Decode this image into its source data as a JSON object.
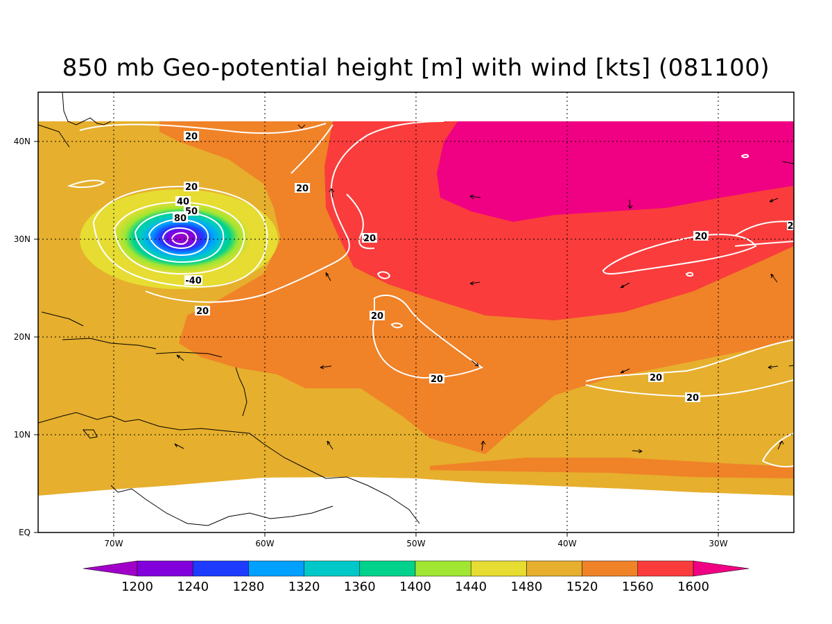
{
  "title": "850 mb Geo-potential height [m] with wind [kts] (081100)",
  "map": {
    "lon_range": [
      -75,
      -25
    ],
    "lat_range": [
      0,
      45
    ],
    "data_lat_range": [
      5,
      42
    ],
    "x_ticks": [
      "70W",
      "60W",
      "50W",
      "40W",
      "30W"
    ],
    "y_ticks": [
      "EQ",
      "10N",
      "20N",
      "30N",
      "40N"
    ],
    "grid": "dotted"
  },
  "colorbar": {
    "levels": [
      "1200",
      "1240",
      "1280",
      "1320",
      "1360",
      "1400",
      "1440",
      "1480",
      "1520",
      "1560",
      "1600"
    ],
    "colors": [
      "#a000c8",
      "#8200dc",
      "#1e3cff",
      "#00a0ff",
      "#00c8c8",
      "#00d28c",
      "#a0e632",
      "#e6dc32",
      "#e6af2d",
      "#f08228",
      "#fa3c3c",
      "#f00082"
    ]
  },
  "wind_contour_labels": [
    "20",
    "20",
    "40",
    "50",
    "80",
    "-40",
    "20",
    "20",
    "20",
    "20",
    "20",
    "20",
    "20",
    "20",
    "20",
    "2"
  ]
}
